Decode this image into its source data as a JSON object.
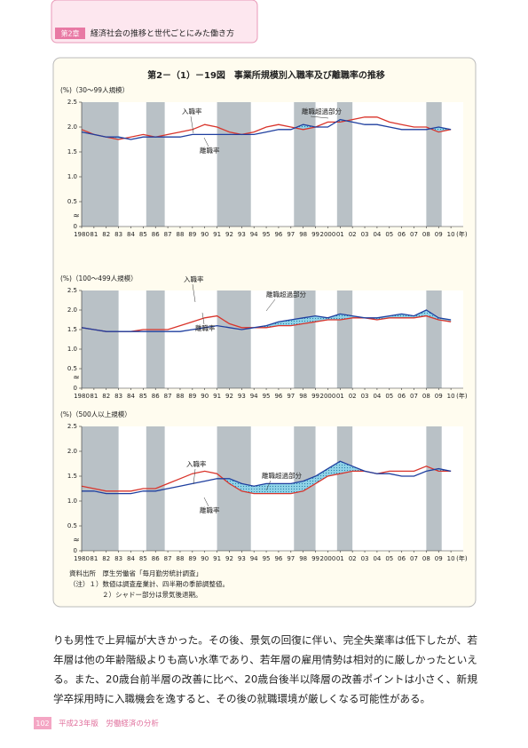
{
  "header": {
    "chapter": "第2章",
    "title": "経済社会の推移と世代ごとにみた働き方"
  },
  "figure": {
    "title": "第2－（1）－19図　事業所規模別入職率及び離職率の推移",
    "source": "資料出所　厚生労働省「毎月勤労統計調査」",
    "notes": [
      "（注）１）数値は調査産業計、四半期の季節調整値。",
      "２）シャドー部分は景気後退期。"
    ]
  },
  "chart_data": [
    {
      "type": "line",
      "ylabel": "(%)（30～99人規模）",
      "x": [
        1980,
        1981,
        1982,
        1983,
        1984,
        1985,
        1986,
        1987,
        1988,
        1989,
        1990,
        1991,
        1992,
        1993,
        1994,
        1995,
        1996,
        1997,
        1998,
        1999,
        2000,
        2001,
        2002,
        2003,
        2004,
        2005,
        2006,
        2007,
        2008,
        2009,
        2010
      ],
      "xlim": [
        1980,
        2011
      ],
      "xticks": [
        {
          "value": 1980,
          "label": "1980"
        },
        {
          "value": 1981,
          "label": "81"
        },
        {
          "value": 1982,
          "label": "82"
        },
        {
          "value": 1983,
          "label": "83"
        },
        {
          "value": 1984,
          "label": "84"
        },
        {
          "value": 1985,
          "label": "85"
        },
        {
          "value": 1986,
          "label": "86"
        },
        {
          "value": 1987,
          "label": "87"
        },
        {
          "value": 1988,
          "label": "88"
        },
        {
          "value": 1989,
          "label": "89"
        },
        {
          "value": 1990,
          "label": "90"
        },
        {
          "value": 1991,
          "label": "91"
        },
        {
          "value": 1992,
          "label": "92"
        },
        {
          "value": 1993,
          "label": "93"
        },
        {
          "value": 1994,
          "label": "94"
        },
        {
          "value": 1995,
          "label": "95"
        },
        {
          "value": 1996,
          "label": "96"
        },
        {
          "value": 1997,
          "label": "97"
        },
        {
          "value": 1998,
          "label": "98"
        },
        {
          "value": 1999,
          "label": "99"
        },
        {
          "value": 2000,
          "label": "2000"
        },
        {
          "value": 2001,
          "label": "01"
        },
        {
          "value": 2002,
          "label": "02"
        },
        {
          "value": 2003,
          "label": "03"
        },
        {
          "value": 2004,
          "label": "04"
        },
        {
          "value": 2005,
          "label": "05"
        },
        {
          "value": 2006,
          "label": "06"
        },
        {
          "value": 2007,
          "label": "07"
        },
        {
          "value": 2008,
          "label": "08"
        },
        {
          "value": 2009,
          "label": "09"
        },
        {
          "value": 2010,
          "label": "10"
        }
      ],
      "x_unit": "(年)",
      "ylim": [
        0,
        2.5
      ],
      "yticks": [
        0,
        0.5,
        {
          "value": 1,
          "label": "1.0"
        },
        1.5,
        {
          "value": 2,
          "label": "2.0"
        },
        2.5
      ],
      "shaded_periods": [
        [
          1980,
          1983
        ],
        [
          1985.25,
          1986.75
        ],
        [
          1991,
          1993.75
        ],
        [
          1997.25,
          1999
        ],
        [
          2000.75,
          2002
        ],
        [
          2008,
          2009.25
        ]
      ],
      "series": [
        {
          "name": "入職率",
          "color": "#d9342b",
          "values": [
            1.95,
            1.85,
            1.8,
            1.75,
            1.8,
            1.85,
            1.8,
            1.85,
            1.9,
            1.95,
            2.05,
            2.0,
            1.9,
            1.85,
            1.9,
            2.0,
            2.05,
            2.0,
            1.95,
            2.0,
            2.1,
            2.1,
            2.15,
            2.2,
            2.2,
            2.1,
            2.05,
            2.0,
            2.0,
            1.9,
            1.95
          ]
        },
        {
          "name": "離職率",
          "color": "#1f3f9f",
          "values": [
            1.9,
            1.85,
            1.8,
            1.8,
            1.75,
            1.8,
            1.8,
            1.8,
            1.8,
            1.85,
            1.85,
            1.85,
            1.85,
            1.85,
            1.85,
            1.9,
            1.95,
            1.95,
            2.05,
            2.0,
            2.0,
            2.15,
            2.1,
            2.05,
            2.05,
            2.0,
            1.95,
            1.95,
            1.95,
            2.0,
            1.95
          ]
        }
      ],
      "fill_label": "離職超過部分"
    },
    {
      "type": "line",
      "ylabel": "(%)（100～499人規模）",
      "x": [
        1980,
        1981,
        1982,
        1983,
        1984,
        1985,
        1986,
        1987,
        1988,
        1989,
        1990,
        1991,
        1992,
        1993,
        1994,
        1995,
        1996,
        1997,
        1998,
        1999,
        2000,
        2001,
        2002,
        2003,
        2004,
        2005,
        2006,
        2007,
        2008,
        2009,
        2010
      ],
      "xlim": [
        1980,
        2011
      ],
      "xticks": [
        {
          "value": 1980,
          "label": "1980"
        },
        {
          "value": 1981,
          "label": "81"
        },
        {
          "value": 1982,
          "label": "82"
        },
        {
          "value": 1983,
          "label": "83"
        },
        {
          "value": 1984,
          "label": "84"
        },
        {
          "value": 1985,
          "label": "85"
        },
        {
          "value": 1986,
          "label": "86"
        },
        {
          "value": 1987,
          "label": "87"
        },
        {
          "value": 1988,
          "label": "88"
        },
        {
          "value": 1989,
          "label": "89"
        },
        {
          "value": 1990,
          "label": "90"
        },
        {
          "value": 1991,
          "label": "91"
        },
        {
          "value": 1992,
          "label": "92"
        },
        {
          "value": 1993,
          "label": "93"
        },
        {
          "value": 1994,
          "label": "94"
        },
        {
          "value": 1995,
          "label": "95"
        },
        {
          "value": 1996,
          "label": "96"
        },
        {
          "value": 1997,
          "label": "97"
        },
        {
          "value": 1998,
          "label": "98"
        },
        {
          "value": 1999,
          "label": "99"
        },
        {
          "value": 2000,
          "label": "2000"
        },
        {
          "value": 2001,
          "label": "01"
        },
        {
          "value": 2002,
          "label": "02"
        },
        {
          "value": 2003,
          "label": "03"
        },
        {
          "value": 2004,
          "label": "04"
        },
        {
          "value": 2005,
          "label": "05"
        },
        {
          "value": 2006,
          "label": "06"
        },
        {
          "value": 2007,
          "label": "07"
        },
        {
          "value": 2008,
          "label": "08"
        },
        {
          "value": 2009,
          "label": "09"
        },
        {
          "value": 2010,
          "label": "10"
        }
      ],
      "x_unit": "(年)",
      "ylim": [
        0,
        2.5
      ],
      "yticks": [
        0,
        0.5,
        {
          "value": 1,
          "label": "1.0"
        },
        1.5,
        {
          "value": 2,
          "label": "2.0"
        },
        2.5
      ],
      "shaded_periods": [
        [
          1980,
          1983
        ],
        [
          1985.25,
          1986.75
        ],
        [
          1991,
          1993.75
        ],
        [
          1997.25,
          1999
        ],
        [
          2000.75,
          2002
        ],
        [
          2008,
          2009.25
        ]
      ],
      "series": [
        {
          "name": "入職率",
          "color": "#d9342b",
          "values": [
            1.55,
            1.5,
            1.45,
            1.45,
            1.45,
            1.5,
            1.5,
            1.5,
            1.6,
            1.7,
            1.8,
            1.85,
            1.65,
            1.55,
            1.55,
            1.55,
            1.6,
            1.6,
            1.65,
            1.7,
            1.75,
            1.75,
            1.8,
            1.8,
            1.75,
            1.8,
            1.8,
            1.8,
            1.85,
            1.75,
            1.7
          ]
        },
        {
          "name": "離職率",
          "color": "#1f3f9f",
          "values": [
            1.55,
            1.5,
            1.45,
            1.45,
            1.45,
            1.45,
            1.45,
            1.45,
            1.45,
            1.5,
            1.55,
            1.6,
            1.55,
            1.5,
            1.55,
            1.6,
            1.7,
            1.75,
            1.8,
            1.85,
            1.8,
            1.9,
            1.85,
            1.8,
            1.8,
            1.85,
            1.9,
            1.85,
            2.0,
            1.8,
            1.75
          ]
        }
      ],
      "fill_label": "離職超過部分"
    },
    {
      "type": "line",
      "ylabel": "(%)（500人以上規模）",
      "x": [
        1980,
        1981,
        1982,
        1983,
        1984,
        1985,
        1986,
        1987,
        1988,
        1989,
        1990,
        1991,
        1992,
        1993,
        1994,
        1995,
        1996,
        1997,
        1998,
        1999,
        2000,
        2001,
        2002,
        2003,
        2004,
        2005,
        2006,
        2007,
        2008,
        2009,
        2010
      ],
      "xlim": [
        1980,
        2011
      ],
      "xticks": [
        {
          "value": 1980,
          "label": "1980"
        },
        {
          "value": 1981,
          "label": "81"
        },
        {
          "value": 1982,
          "label": "82"
        },
        {
          "value": 1983,
          "label": "83"
        },
        {
          "value": 1984,
          "label": "84"
        },
        {
          "value": 1985,
          "label": "85"
        },
        {
          "value": 1986,
          "label": "86"
        },
        {
          "value": 1987,
          "label": "87"
        },
        {
          "value": 1988,
          "label": "88"
        },
        {
          "value": 1989,
          "label": "89"
        },
        {
          "value": 1990,
          "label": "90"
        },
        {
          "value": 1991,
          "label": "91"
        },
        {
          "value": 1992,
          "label": "92"
        },
        {
          "value": 1993,
          "label": "93"
        },
        {
          "value": 1994,
          "label": "94"
        },
        {
          "value": 1995,
          "label": "95"
        },
        {
          "value": 1996,
          "label": "96"
        },
        {
          "value": 1997,
          "label": "97"
        },
        {
          "value": 1998,
          "label": "98"
        },
        {
          "value": 1999,
          "label": "99"
        },
        {
          "value": 2000,
          "label": "2000"
        },
        {
          "value": 2001,
          "label": "01"
        },
        {
          "value": 2002,
          "label": "02"
        },
        {
          "value": 2003,
          "label": "03"
        },
        {
          "value": 2004,
          "label": "04"
        },
        {
          "value": 2005,
          "label": "05"
        },
        {
          "value": 2006,
          "label": "06"
        },
        {
          "value": 2007,
          "label": "07"
        },
        {
          "value": 2008,
          "label": "08"
        },
        {
          "value": 2009,
          "label": "09"
        },
        {
          "value": 2010,
          "label": "10"
        }
      ],
      "x_unit": "(年)",
      "ylim": [
        0,
        2.5
      ],
      "yticks": [
        0,
        0.5,
        {
          "value": 1,
          "label": "1.0"
        },
        1.5,
        {
          "value": 2,
          "label": "2.0"
        },
        2.5
      ],
      "shaded_periods": [
        [
          1980,
          1983
        ],
        [
          1985.25,
          1986.75
        ],
        [
          1991,
          1993.75
        ],
        [
          1997.25,
          1999
        ],
        [
          2000.75,
          2002
        ],
        [
          2008,
          2009.25
        ]
      ],
      "series": [
        {
          "name": "入職率",
          "color": "#d9342b",
          "values": [
            1.3,
            1.25,
            1.2,
            1.2,
            1.2,
            1.25,
            1.25,
            1.35,
            1.45,
            1.55,
            1.6,
            1.55,
            1.35,
            1.2,
            1.15,
            1.15,
            1.15,
            1.15,
            1.2,
            1.35,
            1.5,
            1.55,
            1.6,
            1.6,
            1.55,
            1.6,
            1.6,
            1.6,
            1.7,
            1.6,
            1.6
          ]
        },
        {
          "name": "離職率",
          "color": "#1f3f9f",
          "values": [
            1.2,
            1.2,
            1.15,
            1.15,
            1.15,
            1.2,
            1.2,
            1.25,
            1.3,
            1.35,
            1.4,
            1.45,
            1.45,
            1.35,
            1.3,
            1.35,
            1.35,
            1.35,
            1.4,
            1.5,
            1.65,
            1.8,
            1.7,
            1.6,
            1.55,
            1.55,
            1.5,
            1.5,
            1.6,
            1.65,
            1.6
          ]
        }
      ],
      "fill_label": "離職超過部分"
    }
  ],
  "body": [
    "りも男性で上昇幅が大きかった。その後、景気の回復に伴い、完全失業率は低下したが、若",
    "年層は他の年齢階級よりも高い水準であり、若年層の雇用情勢は相対的に厳しかったといえ",
    "る。また、20歳台前半層の改善に比べ、20歳台後半以降層の改善ポイントは小さく、新規",
    "学卒採用時に入職機会を逸すると、その後の就職環境が厳しくなる可能性がある。"
  ],
  "footer": {
    "page": "102",
    "title": "平成23年版　労働経済の分析"
  }
}
